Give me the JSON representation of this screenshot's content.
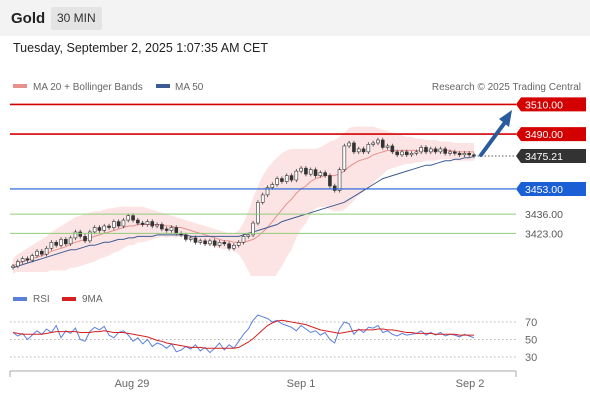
{
  "header": {
    "instrument": "Gold",
    "timeframe": "30 MIN"
  },
  "timestamp": "Tuesday, September 2, 2025 1:07:35 AM CET",
  "legend": {
    "bb_label": "MA 20 + Bollinger Bands",
    "ma50_label": "MA 50",
    "copyright": "Research © 2025 Trading Central",
    "rsi_label": "RSI",
    "ma9_label": "9MA"
  },
  "colors": {
    "resistance": "#d40000",
    "support": "#1a5fd6",
    "bullish_arrow": "#2a5b9e",
    "ma50": "#3c5b94",
    "ma20": "#e8908c",
    "bands_fill": "#fde4e4",
    "rsi": "#5b7fdb",
    "rsi_ma": "#d62020",
    "minor_level": "#8fcc7a",
    "current_price": "#333333"
  },
  "chart_data": [
    {
      "type": "candlestick",
      "x_labels": [
        "Aug 29",
        "Sep 1",
        "Sep 2"
      ],
      "levels": [
        {
          "value": 3510.0,
          "label": "3510.00",
          "kind": "resistance"
        },
        {
          "value": 3490.0,
          "label": "3490.00",
          "kind": "resistance"
        },
        {
          "value": 3475.21,
          "label": "3475.21",
          "kind": "current"
        },
        {
          "value": 3453.0,
          "label": "3453.00",
          "kind": "support"
        },
        {
          "value": 3436.0,
          "label": "3436.00",
          "kind": "minor"
        },
        {
          "value": 3423.0,
          "label": "3423.00",
          "kind": "minor"
        }
      ],
      "close": [
        3401,
        3404,
        3406,
        3405,
        3408,
        3411,
        3409,
        3413,
        3417,
        3415,
        3419,
        3416,
        3420,
        3424,
        3421,
        3418,
        3424,
        3427,
        3425,
        3428,
        3427,
        3431,
        3428,
        3432,
        3435,
        3432,
        3430,
        3429,
        3431,
        3428,
        3429,
        3426,
        3425,
        3427,
        3423,
        3422,
        3419,
        3420,
        3417,
        3418,
        3416,
        3418,
        3415,
        3417,
        3416,
        3413,
        3415,
        3417,
        3421,
        3422,
        3430,
        3444,
        3449,
        3454,
        3456,
        3460,
        3458,
        3462,
        3459,
        3465,
        3467,
        3463,
        3466,
        3462,
        3464,
        3462,
        3455,
        3452,
        3466,
        3482,
        3484,
        3478,
        3480,
        3478,
        3483,
        3484,
        3486,
        3481,
        3482,
        3478,
        3476,
        3478,
        3476,
        3477,
        3478,
        3481,
        3478,
        3480,
        3478,
        3480,
        3477,
        3478,
        3477,
        3476,
        3477,
        3476,
        3475.21
      ],
      "ma20": [
        3401,
        3403,
        3404,
        3405,
        3406,
        3407,
        3408,
        3409,
        3411,
        3412,
        3413,
        3414,
        3416,
        3417,
        3418,
        3419,
        3420,
        3421,
        3422,
        3423,
        3424,
        3425,
        3426,
        3427,
        3428,
        3428,
        3429,
        3429,
        3429,
        3429,
        3429,
        3429,
        3428,
        3428,
        3427,
        3427,
        3426,
        3425,
        3424,
        3423,
        3422,
        3421,
        3420,
        3419,
        3418,
        3418,
        3417,
        3417,
        3417,
        3418,
        3419,
        3421,
        3424,
        3427,
        3431,
        3435,
        3439,
        3443,
        3446,
        3450,
        3453,
        3455,
        3458,
        3460,
        3461,
        3462,
        3462,
        3462,
        3463,
        3465,
        3468,
        3470,
        3472,
        3473,
        3474,
        3476,
        3477,
        3478,
        3479,
        3479,
        3479,
        3479,
        3479,
        3479,
        3479,
        3479,
        3479,
        3479,
        3479,
        3479,
        3479,
        3479,
        3478,
        3478,
        3478,
        3478,
        3478
      ],
      "ma50": [
        3400,
        3401,
        3402,
        3403,
        3404,
        3405,
        3406,
        3407,
        3408,
        3409,
        3410,
        3411,
        3412,
        3412,
        3413,
        3414,
        3415,
        3415,
        3416,
        3417,
        3417,
        3418,
        3419,
        3419,
        3420,
        3420,
        3421,
        3421,
        3421,
        3421,
        3422,
        3422,
        3422,
        3422,
        3422,
        3422,
        3422,
        3421,
        3421,
        3421,
        3421,
        3421,
        3421,
        3421,
        3421,
        3421,
        3421,
        3421,
        3422,
        3423,
        3424,
        3425,
        3426,
        3427,
        3428,
        3429,
        3431,
        3432,
        3433,
        3434,
        3435,
        3436,
        3437,
        3438,
        3439,
        3440,
        3441,
        3442,
        3443,
        3444,
        3446,
        3448,
        3450,
        3452,
        3454,
        3456,
        3458,
        3460,
        3461,
        3462,
        3463,
        3464,
        3465,
        3466,
        3467,
        3468,
        3469,
        3469,
        3470,
        3471,
        3472,
        3472,
        3473,
        3473,
        3474,
        3474,
        3475
      ],
      "bb_upper": [
        3406,
        3409,
        3411,
        3413,
        3415,
        3417,
        3419,
        3421,
        3424,
        3426,
        3428,
        3430,
        3432,
        3434,
        3435,
        3436,
        3437,
        3438,
        3438,
        3439,
        3440,
        3440,
        3441,
        3441,
        3441,
        3441,
        3441,
        3441,
        3440,
        3439,
        3438,
        3437,
        3436,
        3435,
        3434,
        3433,
        3432,
        3431,
        3430,
        3429,
        3428,
        3427,
        3426,
        3425,
        3424,
        3423,
        3423,
        3425,
        3430,
        3438,
        3447,
        3455,
        3462,
        3467,
        3471,
        3474,
        3477,
        3479,
        3480,
        3480,
        3480,
        3480,
        3480,
        3480,
        3481,
        3483,
        3485,
        3486,
        3488,
        3491,
        3494,
        3495,
        3495,
        3495,
        3495,
        3495,
        3494,
        3493,
        3492,
        3491,
        3490,
        3489,
        3488,
        3488,
        3487,
        3487,
        3486,
        3486,
        3486,
        3485,
        3485,
        3485,
        3484,
        3484,
        3484,
        3484,
        3484
      ],
      "bb_lower": [
        3396,
        3397,
        3397,
        3397,
        3397,
        3397,
        3397,
        3397,
        3398,
        3398,
        3398,
        3398,
        3400,
        3400,
        3401,
        3402,
        3403,
        3404,
        3406,
        3407,
        3408,
        3410,
        3411,
        3413,
        3415,
        3415,
        3417,
        3417,
        3418,
        3419,
        3420,
        3421,
        3420,
        3421,
        3420,
        3421,
        3420,
        3419,
        3418,
        3417,
        3416,
        3415,
        3414,
        3413,
        3412,
        3413,
        3411,
        3409,
        3404,
        3398,
        3391,
        3387,
        3386,
        3387,
        3391,
        3396,
        3401,
        3407,
        3412,
        3420,
        3426,
        3430,
        3436,
        3440,
        3441,
        3441,
        3439,
        3438,
        3438,
        3439,
        3442,
        3445,
        3449,
        3451,
        3453,
        3457,
        3460,
        3463,
        3466,
        3467,
        3468,
        3469,
        3470,
        3470,
        3471,
        3471,
        3472,
        3472,
        3472,
        3473,
        3473,
        3473,
        3472,
        3472,
        3472,
        3472,
        3472
      ],
      "ylim": [
        3397,
        3516
      ]
    },
    {
      "type": "line",
      "name": "RSI",
      "y_ticks": [
        70,
        50,
        30
      ],
      "ylim": [
        20,
        80
      ],
      "rsi": [
        58,
        54,
        57,
        50,
        55,
        60,
        56,
        62,
        58,
        66,
        52,
        60,
        57,
        63,
        50,
        48,
        59,
        64,
        61,
        65,
        55,
        52,
        58,
        60,
        55,
        48,
        52,
        45,
        50,
        42,
        46,
        44,
        40,
        45,
        36,
        38,
        42,
        39,
        44,
        37,
        41,
        35,
        40,
        46,
        38,
        44,
        40,
        48,
        56,
        62,
        72,
        78,
        76,
        74,
        70,
        72,
        68,
        66,
        64,
        60,
        66,
        62,
        58,
        60,
        55,
        58,
        50,
        46,
        62,
        70,
        68,
        56,
        62,
        58,
        64,
        63,
        66,
        58,
        60,
        56,
        54,
        57,
        55,
        56,
        57,
        60,
        55,
        58,
        55,
        58,
        54,
        56,
        55,
        53,
        56,
        54,
        52
      ],
      "rsi_ma": [
        58,
        57,
        56,
        56,
        56,
        56,
        56,
        57,
        58,
        59,
        59,
        59,
        59,
        59,
        58,
        58,
        58,
        59,
        59,
        60,
        59,
        58,
        58,
        58,
        57,
        56,
        55,
        54,
        53,
        51,
        49,
        48,
        46,
        45,
        44,
        43,
        42,
        41,
        41,
        41,
        40,
        40,
        40,
        40,
        40,
        40,
        40,
        41,
        44,
        47,
        51,
        56,
        61,
        66,
        69,
        71,
        72,
        71,
        70,
        69,
        68,
        67,
        65,
        63,
        61,
        60,
        59,
        58,
        57,
        58,
        59,
        60,
        61,
        61,
        61,
        61,
        62,
        62,
        61,
        61,
        60,
        59,
        58,
        58,
        57,
        57,
        57,
        57,
        56,
        56,
        56,
        56,
        56,
        55,
        55,
        55,
        55
      ]
    }
  ]
}
